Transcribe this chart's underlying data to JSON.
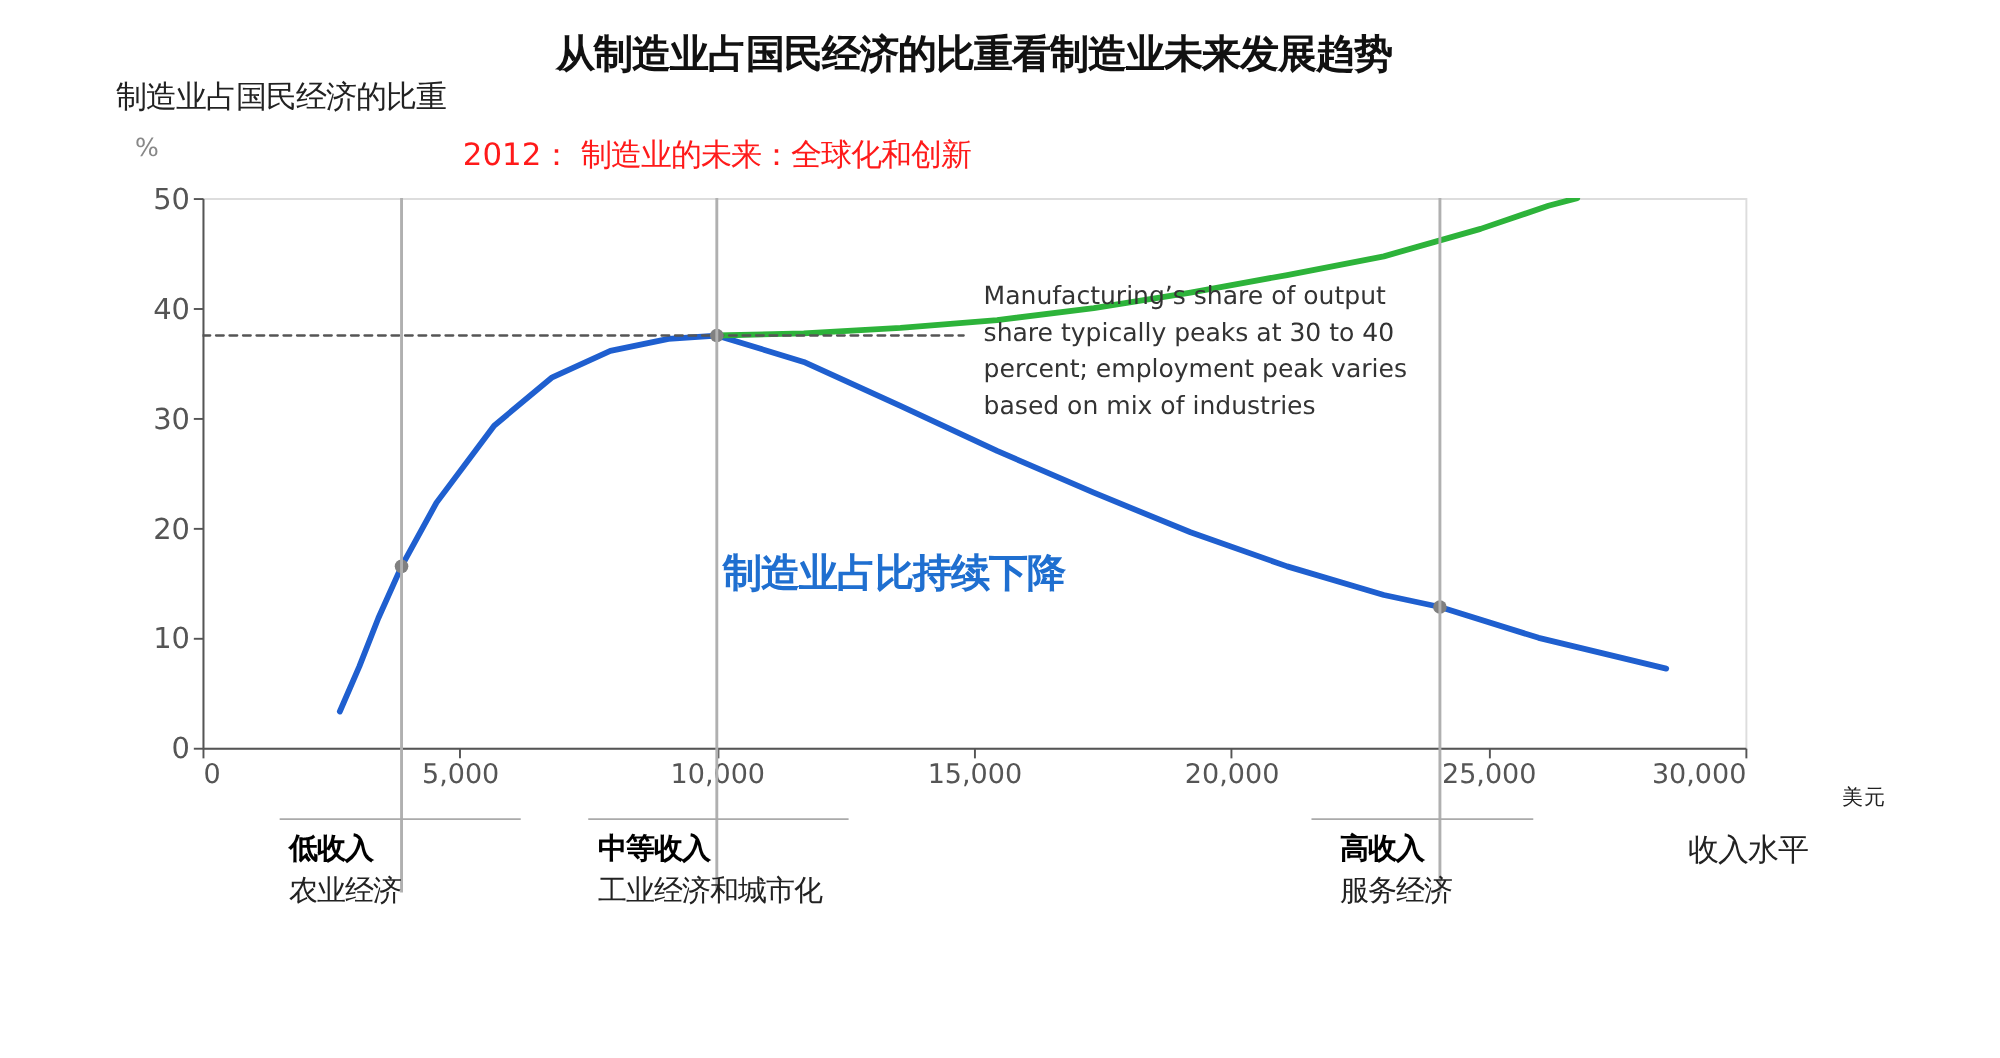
{
  "chart_data": {
    "type": "line",
    "title": "从制造业占国民经济的比重看制造业未来发展趋势",
    "subtitle": "2012： 制造业的未来：全球化和创新",
    "ylabel": "制造业占国民经济的比重",
    "xlabel": "收入水平",
    "xlim": [
      0,
      30000
    ],
    "xticks": [
      {
        "value": 0,
        "label": "0"
      },
      {
        "value": 5000,
        "label": "5,000"
      },
      {
        "value": 10000,
        "label": "10,000"
      },
      {
        "value": 15000,
        "label": "15,000"
      },
      {
        "value": 20000,
        "label": "20,000"
      },
      {
        "value": 25000,
        "label": "25,000"
      },
      {
        "value": 30000,
        "label": "30,000"
      }
    ],
    "ylim": [
      0,
      50
    ],
    "yticks": [
      0,
      10,
      20,
      30,
      40,
      50
    ],
    "grid": false,
    "series": [
      {
        "color": "#1f5fcf",
        "x": [
          2670,
          3050,
          3420,
          3870,
          4550,
          5670,
          6800,
          7930,
          9060,
          10000,
          11690,
          13570,
          15450,
          17330,
          19210,
          21090,
          22970,
          24060,
          25980,
          28460
        ],
        "values": [
          3.3,
          7.4,
          11.8,
          16.5,
          22.3,
          29.3,
          33.7,
          36.1,
          37.2,
          37.5,
          35.1,
          31.1,
          27.0,
          23.2,
          19.6,
          16.5,
          13.9,
          12.8,
          10.0,
          7.2
        ]
      },
      {
        "color": "#2db33a",
        "x": [
          10000,
          11690,
          13570,
          15450,
          17330,
          19210,
          21090,
          22970,
          24850,
          26170,
          26730
        ],
        "values": [
          37.5,
          37.7,
          38.2,
          38.9,
          40.0,
          41.4,
          43.0,
          44.7,
          47.2,
          49.3,
          50.0
        ]
      },
      {
        "type": "line",
        "color": "#555555",
        "line_style": "dashed",
        "x": [
          0,
          14800
        ],
        "values": [
          37.5,
          37.5
        ]
      },
      {
        "type": "scatter",
        "color": "#808080",
        "marker": "circle",
        "x": [
          3870,
          10000,
          24060
        ],
        "values": [
          16.5,
          37.5,
          12.8
        ]
      }
    ],
    "ref_lines": [
      {
        "axis": "x",
        "value": 3870,
        "color": "#b0b0b0"
      },
      {
        "axis": "x",
        "value": 10000,
        "color": "#b0b0b0"
      },
      {
        "axis": "x",
        "value": 24060,
        "color": "#b0b0b0"
      }
    ],
    "annotations": [
      "%",
      "美元",
      "Manufacturing’s share of output share typically peaks at 30 to 40 percent; employment peak varies based on mix of industries",
      "制造业占比持续下降",
      "低收入",
      "农业经济",
      "中等收入",
      "工业经济和城市化",
      "高收入",
      "服务经济"
    ]
  }
}
